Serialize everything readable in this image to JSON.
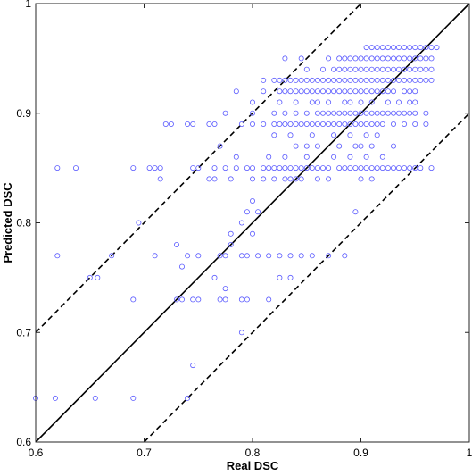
{
  "chart_data": {
    "type": "scatter",
    "title": "",
    "xlabel": "Real DSC",
    "ylabel": "Predicted DSC",
    "xlim": [
      0.6,
      1.0
    ],
    "ylim": [
      0.6,
      1.0
    ],
    "xticks": [
      "0.6",
      "0.7",
      "0.8",
      "0.9",
      "1"
    ],
    "yticks": [
      "0.6",
      "0.7",
      "0.8",
      "0.9",
      "1"
    ],
    "grid": false,
    "marker": "open-circle",
    "colors": {
      "points": "#5a5aff",
      "lines": "#000000"
    },
    "reference_lines": [
      {
        "style": "solid",
        "x": [
          0.6,
          1.0
        ],
        "y": [
          0.6,
          1.0
        ]
      },
      {
        "style": "dashed",
        "x": [
          0.6,
          0.9
        ],
        "y": [
          0.7,
          1.0
        ]
      },
      {
        "style": "dashed",
        "x": [
          0.7,
          1.0
        ],
        "y": [
          0.6,
          0.9
        ]
      }
    ],
    "series": [
      {
        "rows": [
          {
            "y": 0.96,
            "x": [
              0.905,
              0.91,
              0.915,
              0.92,
              0.925,
              0.93,
              0.935,
              0.94,
              0.945,
              0.95,
              0.955,
              0.96,
              0.965,
              0.97
            ]
          },
          {
            "y": 0.95,
            "x": [
              0.83,
              0.845,
              0.87,
              0.88,
              0.885,
              0.89,
              0.895,
              0.9,
              0.905,
              0.91,
              0.915,
              0.92,
              0.925,
              0.93,
              0.935,
              0.94,
              0.945,
              0.95,
              0.955,
              0.96,
              0.965
            ]
          },
          {
            "y": 0.94,
            "x": [
              0.85,
              0.865,
              0.875,
              0.88,
              0.885,
              0.89,
              0.895,
              0.9,
              0.905,
              0.91,
              0.915,
              0.92,
              0.925,
              0.93,
              0.935,
              0.94,
              0.945,
              0.95,
              0.955,
              0.96,
              0.965
            ]
          },
          {
            "y": 0.93,
            "x": [
              0.81,
              0.82,
              0.825,
              0.83,
              0.835,
              0.84,
              0.845,
              0.85,
              0.855,
              0.86,
              0.865,
              0.87,
              0.875,
              0.88,
              0.885,
              0.89,
              0.895,
              0.9,
              0.905,
              0.91,
              0.915,
              0.92,
              0.925,
              0.93,
              0.935,
              0.94,
              0.945,
              0.95,
              0.955,
              0.96,
              0.965
            ]
          },
          {
            "y": 0.92,
            "x": [
              0.785,
              0.81,
              0.825,
              0.83,
              0.835,
              0.84,
              0.845,
              0.85,
              0.855,
              0.86,
              0.865,
              0.87,
              0.875,
              0.88,
              0.885,
              0.89,
              0.895,
              0.9,
              0.905,
              0.91,
              0.915,
              0.92,
              0.925,
              0.93,
              0.94,
              0.945,
              0.95
            ]
          },
          {
            "y": 0.91,
            "x": [
              0.8,
              0.825,
              0.84,
              0.855,
              0.86,
              0.87,
              0.885,
              0.89,
              0.9,
              0.91,
              0.925,
              0.935,
              0.945,
              0.95
            ]
          },
          {
            "y": 0.9,
            "x": [
              0.775,
              0.8,
              0.82,
              0.83,
              0.84,
              0.85,
              0.86,
              0.865,
              0.87,
              0.875,
              0.88,
              0.885,
              0.89,
              0.895,
              0.9,
              0.905,
              0.91,
              0.915,
              0.92,
              0.925,
              0.93,
              0.935,
              0.94,
              0.945,
              0.95,
              0.96
            ]
          },
          {
            "y": 0.89,
            "x": [
              0.72,
              0.725,
              0.74,
              0.745,
              0.76,
              0.765,
              0.79,
              0.8,
              0.81,
              0.82,
              0.825,
              0.83,
              0.835,
              0.84,
              0.845,
              0.85,
              0.855,
              0.86,
              0.865,
              0.87,
              0.875,
              0.88,
              0.885,
              0.89,
              0.895,
              0.9,
              0.905,
              0.91,
              0.915,
              0.92,
              0.93,
              0.94,
              0.95,
              0.96
            ]
          },
          {
            "y": 0.88,
            "x": [
              0.82,
              0.835,
              0.855,
              0.875,
              0.89,
              0.905,
              0.915
            ]
          },
          {
            "y": 0.87,
            "x": [
              0.77,
              0.84,
              0.85,
              0.86,
              0.88,
              0.895,
              0.9,
              0.91,
              0.93
            ]
          },
          {
            "y": 0.86,
            "x": [
              0.785,
              0.815,
              0.83,
              0.85,
              0.875,
              0.89,
              0.905,
              0.92
            ]
          },
          {
            "y": 0.85,
            "x": [
              0.62,
              0.637,
              0.69,
              0.705,
              0.71,
              0.715,
              0.745,
              0.75,
              0.765,
              0.775,
              0.785,
              0.795,
              0.8,
              0.81,
              0.815,
              0.82,
              0.825,
              0.83,
              0.835,
              0.84,
              0.845,
              0.85,
              0.855,
              0.86,
              0.865,
              0.87,
              0.88,
              0.885,
              0.89,
              0.895,
              0.9,
              0.905,
              0.91,
              0.915,
              0.92,
              0.925,
              0.93,
              0.935,
              0.94,
              0.945,
              0.95,
              0.955,
              0.965
            ]
          },
          {
            "y": 0.84,
            "x": [
              0.715,
              0.76,
              0.765,
              0.78,
              0.8,
              0.81,
              0.82,
              0.83,
              0.835,
              0.84,
              0.845,
              0.86,
              0.87,
              0.9,
              0.91
            ]
          },
          {
            "y": 0.82,
            "x": [
              0.8
            ]
          },
          {
            "y": 0.81,
            "x": [
              0.795,
              0.805,
              0.895
            ]
          },
          {
            "y": 0.8,
            "x": [
              0.695,
              0.79
            ]
          },
          {
            "y": 0.79,
            "x": [
              0.78,
              0.8
            ]
          },
          {
            "y": 0.78,
            "x": [
              0.73,
              0.78
            ]
          },
          {
            "y": 0.77,
            "x": [
              0.62,
              0.67,
              0.71,
              0.74,
              0.75,
              0.77,
              0.775,
              0.79,
              0.795,
              0.805,
              0.815,
              0.825,
              0.835,
              0.845,
              0.855,
              0.87,
              0.885
            ]
          },
          {
            "y": 0.76,
            "x": [
              0.735
            ]
          },
          {
            "y": 0.75,
            "x": [
              0.65,
              0.657,
              0.765,
              0.825,
              0.835
            ]
          },
          {
            "y": 0.74,
            "x": [
              0.775
            ]
          },
          {
            "y": 0.73,
            "x": [
              0.69,
              0.73,
              0.735,
              0.745,
              0.75,
              0.77,
              0.775,
              0.79,
              0.795,
              0.815
            ]
          },
          {
            "y": 0.7,
            "x": [
              0.79
            ]
          },
          {
            "y": 0.67,
            "x": [
              0.745
            ]
          },
          {
            "y": 0.64,
            "x": [
              0.6,
              0.618,
              0.655,
              0.69,
              0.74
            ]
          }
        ]
      }
    ]
  }
}
